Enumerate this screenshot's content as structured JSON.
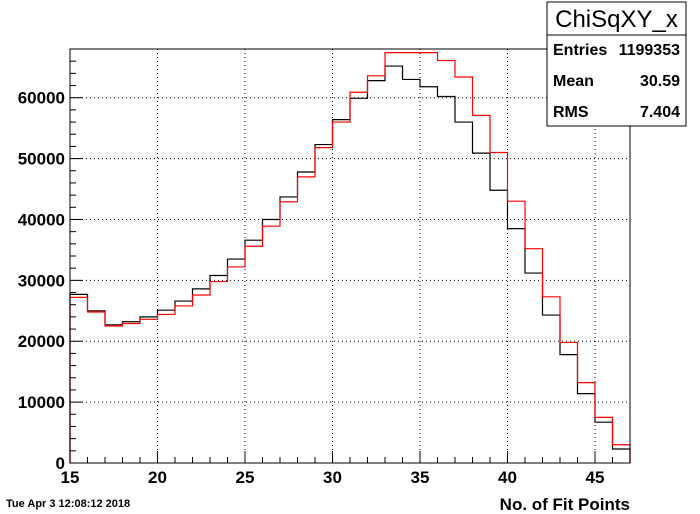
{
  "timestamp": "Tue Apr  3 12:08:12 2018",
  "stats_box": {
    "title": "ChiSqXY_x",
    "rows": [
      {
        "label": "Entries",
        "value": "1199353"
      },
      {
        "label": "Mean",
        "value": "30.59"
      },
      {
        "label": "RMS",
        "value": "7.404"
      }
    ]
  },
  "chart_data": {
    "type": "histogram",
    "title": "",
    "xlabel": "No. of Fit Points",
    "ylabel": "",
    "xlim": [
      15,
      47
    ],
    "ylim": [
      0,
      68000
    ],
    "grid": true,
    "x_ticks": [
      15,
      20,
      25,
      30,
      35,
      40,
      45
    ],
    "y_ticks": [
      0,
      10000,
      20000,
      30000,
      40000,
      50000,
      60000
    ],
    "bin_edges": [
      15,
      16,
      17,
      18,
      19,
      20,
      21,
      22,
      23,
      24,
      25,
      26,
      27,
      28,
      29,
      30,
      31,
      32,
      33,
      34,
      35,
      36,
      37,
      38,
      39,
      40,
      41,
      42,
      43,
      44,
      45,
      46,
      47
    ],
    "series": [
      {
        "color": "#000000",
        "values": [
          27700,
          25000,
          22700,
          23200,
          24000,
          25100,
          26600,
          28600,
          30800,
          33500,
          36600,
          40000,
          43700,
          47800,
          52300,
          56400,
          59900,
          62800,
          65200,
          63000,
          61800,
          60200,
          56000,
          50900,
          44800,
          38500,
          31200,
          24300,
          17800,
          11400,
          6700,
          2300
        ]
      },
      {
        "color": "#ff0000",
        "values": [
          27200,
          24800,
          22500,
          22900,
          23600,
          24400,
          25800,
          27600,
          29800,
          32200,
          35600,
          38900,
          42900,
          47000,
          51800,
          56000,
          60900,
          63600,
          67400,
          67400,
          67400,
          66100,
          63400,
          57100,
          51000,
          43000,
          35200,
          27300,
          19800,
          13200,
          7500,
          3000
        ]
      }
    ]
  }
}
